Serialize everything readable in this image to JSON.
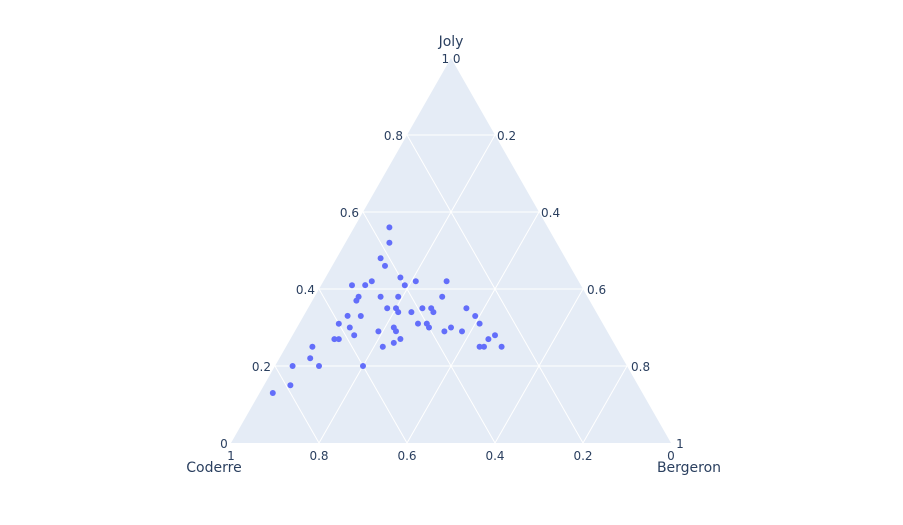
{
  "chart_data": {
    "type": "scatter",
    "subtype": "ternary",
    "title": "",
    "axes": {
      "a": {
        "title": "Joly",
        "ticks": [
          "0.2",
          "0.4",
          "0.6",
          "0.8",
          "1"
        ]
      },
      "b": {
        "title": "Coderre",
        "ticks": [
          "0",
          "0.2",
          "0.4",
          "0.6",
          "0.8",
          "1"
        ]
      },
      "c": {
        "title": "Bergeron",
        "ticks": [
          "0",
          "0.2",
          "0.4",
          "0.6",
          "0.8",
          "1"
        ]
      }
    },
    "tick_labels": {
      "left_side": [
        "0.2",
        "0.4",
        "0.6",
        "0.8"
      ],
      "right_side": [
        "0.2",
        "0.4",
        "0.6",
        "0.8"
      ],
      "bottom": [
        "1",
        "0.8",
        "0.6",
        "0.4",
        "0.2",
        "0"
      ],
      "top_vertex": "1 0",
      "bottom_left_vertex": "0",
      "bottom_right_vertex": "1"
    },
    "grid": true,
    "legend": false,
    "colors": {
      "background": "#e5ecf6",
      "grid": "#ffffff",
      "marker": "#636efa",
      "text": "#2a3f5f"
    },
    "series": [
      {
        "name": "points",
        "marker_color": "#636efa",
        "points": [
          {
            "Joly": 0.56,
            "Coderre": 0.36,
            "Bergeron": 0.08
          },
          {
            "Joly": 0.52,
            "Coderre": 0.38,
            "Bergeron": 0.1
          },
          {
            "Joly": 0.48,
            "Coderre": 0.42,
            "Bergeron": 0.1
          },
          {
            "Joly": 0.46,
            "Coderre": 0.42,
            "Bergeron": 0.12
          },
          {
            "Joly": 0.41,
            "Coderre": 0.52,
            "Bergeron": 0.07
          },
          {
            "Joly": 0.41,
            "Coderre": 0.49,
            "Bergeron": 0.1
          },
          {
            "Joly": 0.42,
            "Coderre": 0.47,
            "Bergeron": 0.11
          },
          {
            "Joly": 0.38,
            "Coderre": 0.52,
            "Bergeron": 0.1
          },
          {
            "Joly": 0.37,
            "Coderre": 0.53,
            "Bergeron": 0.1
          },
          {
            "Joly": 0.38,
            "Coderre": 0.47,
            "Bergeron": 0.15
          },
          {
            "Joly": 0.33,
            "Coderre": 0.57,
            "Bergeron": 0.1
          },
          {
            "Joly": 0.33,
            "Coderre": 0.54,
            "Bergeron": 0.13
          },
          {
            "Joly": 0.31,
            "Coderre": 0.6,
            "Bergeron": 0.09
          },
          {
            "Joly": 0.3,
            "Coderre": 0.58,
            "Bergeron": 0.12
          },
          {
            "Joly": 0.28,
            "Coderre": 0.58,
            "Bergeron": 0.14
          },
          {
            "Joly": 0.27,
            "Coderre": 0.63,
            "Bergeron": 0.1
          },
          {
            "Joly": 0.27,
            "Coderre": 0.62,
            "Bergeron": 0.11
          },
          {
            "Joly": 0.29,
            "Coderre": 0.52,
            "Bergeron": 0.19
          },
          {
            "Joly": 0.25,
            "Coderre": 0.69,
            "Bergeron": 0.06
          },
          {
            "Joly": 0.22,
            "Coderre": 0.71,
            "Bergeron": 0.07
          },
          {
            "Joly": 0.2,
            "Coderre": 0.7,
            "Bergeron": 0.1
          },
          {
            "Joly": 0.2,
            "Coderre": 0.76,
            "Bergeron": 0.04
          },
          {
            "Joly": 0.2,
            "Coderre": 0.6,
            "Bergeron": 0.2
          },
          {
            "Joly": 0.13,
            "Coderre": 0.84,
            "Bergeron": 0.03
          },
          {
            "Joly": 0.15,
            "Coderre": 0.79,
            "Bergeron": 0.06
          },
          {
            "Joly": 0.43,
            "Coderre": 0.4,
            "Bergeron": 0.17
          },
          {
            "Joly": 0.42,
            "Coderre": 0.37,
            "Bergeron": 0.21
          },
          {
            "Joly": 0.41,
            "Coderre": 0.4,
            "Bergeron": 0.19
          },
          {
            "Joly": 0.38,
            "Coderre": 0.43,
            "Bergeron": 0.19
          },
          {
            "Joly": 0.42,
            "Coderre": 0.3,
            "Bergeron": 0.28
          },
          {
            "Joly": 0.38,
            "Coderre": 0.33,
            "Bergeron": 0.29
          },
          {
            "Joly": 0.35,
            "Coderre": 0.47,
            "Bergeron": 0.18
          },
          {
            "Joly": 0.35,
            "Coderre": 0.45,
            "Bergeron": 0.2
          },
          {
            "Joly": 0.34,
            "Coderre": 0.45,
            "Bergeron": 0.21
          },
          {
            "Joly": 0.34,
            "Coderre": 0.42,
            "Bergeron": 0.24
          },
          {
            "Joly": 0.35,
            "Coderre": 0.39,
            "Bergeron": 0.26
          },
          {
            "Joly": 0.35,
            "Coderre": 0.37,
            "Bergeron": 0.28
          },
          {
            "Joly": 0.34,
            "Coderre": 0.37,
            "Bergeron": 0.29
          },
          {
            "Joly": 0.3,
            "Coderre": 0.48,
            "Bergeron": 0.22
          },
          {
            "Joly": 0.29,
            "Coderre": 0.48,
            "Bergeron": 0.23
          },
          {
            "Joly": 0.31,
            "Coderre": 0.4,
            "Bergeron": 0.29
          },
          {
            "Joly": 0.3,
            "Coderre": 0.4,
            "Bergeron": 0.3
          },
          {
            "Joly": 0.31,
            "Coderre": 0.42,
            "Bergeron": 0.27
          },
          {
            "Joly": 0.26,
            "Coderre": 0.5,
            "Bergeron": 0.24
          },
          {
            "Joly": 0.27,
            "Coderre": 0.48,
            "Bergeron": 0.25
          },
          {
            "Joly": 0.25,
            "Coderre": 0.53,
            "Bergeron": 0.22
          },
          {
            "Joly": 0.29,
            "Coderre": 0.37,
            "Bergeron": 0.34
          },
          {
            "Joly": 0.3,
            "Coderre": 0.35,
            "Bergeron": 0.35
          },
          {
            "Joly": 0.35,
            "Coderre": 0.29,
            "Bergeron": 0.36
          },
          {
            "Joly": 0.33,
            "Coderre": 0.28,
            "Bergeron": 0.39
          },
          {
            "Joly": 0.31,
            "Coderre": 0.28,
            "Bergeron": 0.41
          },
          {
            "Joly": 0.29,
            "Coderre": 0.33,
            "Bergeron": 0.38
          },
          {
            "Joly": 0.27,
            "Coderre": 0.28,
            "Bergeron": 0.45
          },
          {
            "Joly": 0.28,
            "Coderre": 0.26,
            "Bergeron": 0.46
          },
          {
            "Joly": 0.25,
            "Coderre": 0.31,
            "Bergeron": 0.44
          },
          {
            "Joly": 0.25,
            "Coderre": 0.3,
            "Bergeron": 0.45
          },
          {
            "Joly": 0.25,
            "Coderre": 0.26,
            "Bergeron": 0.49
          }
        ]
      }
    ]
  }
}
